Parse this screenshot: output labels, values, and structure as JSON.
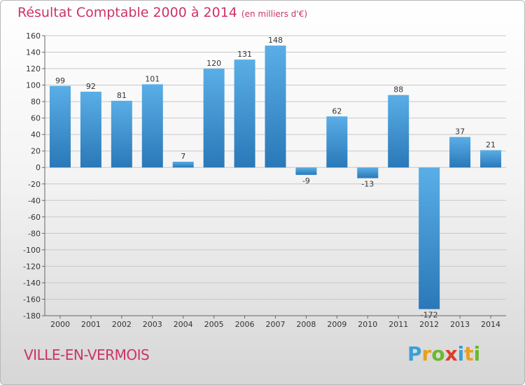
{
  "title": "Résultat Comptable 2000 à 2014",
  "subtitle": "(en milliers d'€)",
  "commune": "VILLE-EN-VERMOIS",
  "logo_letters": [
    {
      "ch": "P",
      "color": "#3aa0d8"
    },
    {
      "ch": "r",
      "color": "#e8a020"
    },
    {
      "ch": "o",
      "color": "#6cb82c"
    },
    {
      "ch": "x",
      "color": "#e03a2a"
    },
    {
      "ch": "i",
      "color": "#3aa0d8"
    },
    {
      "ch": "t",
      "color": "#e8a020"
    },
    {
      "ch": "i",
      "color": "#6cb82c"
    }
  ],
  "chart_data": {
    "type": "bar",
    "categories": [
      "2000",
      "2001",
      "2002",
      "2003",
      "2004",
      "2005",
      "2006",
      "2007",
      "2008",
      "2009",
      "2010",
      "2011",
      "2012",
      "2013",
      "2014"
    ],
    "values": [
      99,
      92,
      81,
      101,
      7,
      120,
      131,
      148,
      -9,
      62,
      -13,
      88,
      -172,
      37,
      21
    ],
    "ylim": [
      -180,
      160
    ],
    "yticks": [
      160,
      140,
      120,
      100,
      80,
      60,
      40,
      20,
      0,
      -20,
      -40,
      -60,
      -80,
      -100,
      -120,
      -140,
      -160,
      -180
    ],
    "grid": true,
    "bar_color_light": "#5aaee6",
    "bar_color_dark": "#2a78b8"
  }
}
